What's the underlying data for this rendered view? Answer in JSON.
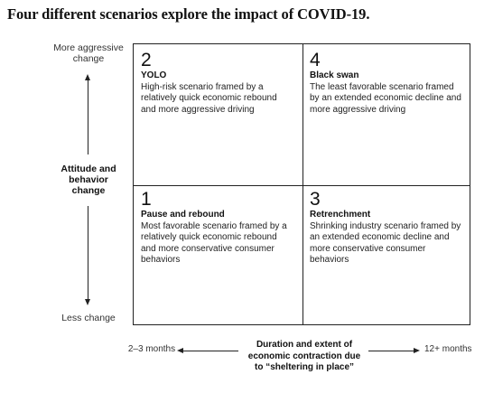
{
  "title": "Four different scenarios explore the impact of COVID-19.",
  "y_axis": {
    "top_label": "More aggressive change",
    "middle_label": "Attitude and behavior change",
    "bottom_label": "Less change"
  },
  "x_axis": {
    "left_label": "2–3 months",
    "middle_label": "Duration and extent of economic contraction due to “sheltering in place”",
    "right_label": "12+ months"
  },
  "quadrants": {
    "top_left": {
      "number": "2",
      "name": "YOLO",
      "description": "High-risk scenario framed by a relatively quick economic rebound and more aggressive driving"
    },
    "top_right": {
      "number": "4",
      "name": "Black swan",
      "description": "The least favorable scenario framed by an extended economic decline and more aggressive driving"
    },
    "bottom_left": {
      "number": "1",
      "name": "Pause and rebound",
      "description": "Most favorable scenario framed by a relatively quick economic rebound and more conservative consumer behaviors"
    },
    "bottom_right": {
      "number": "3",
      "name": "Retrenchment",
      "description": "Shrinking industry scenario framed by an extended economic decline and more conservative consumer behaviors"
    }
  }
}
